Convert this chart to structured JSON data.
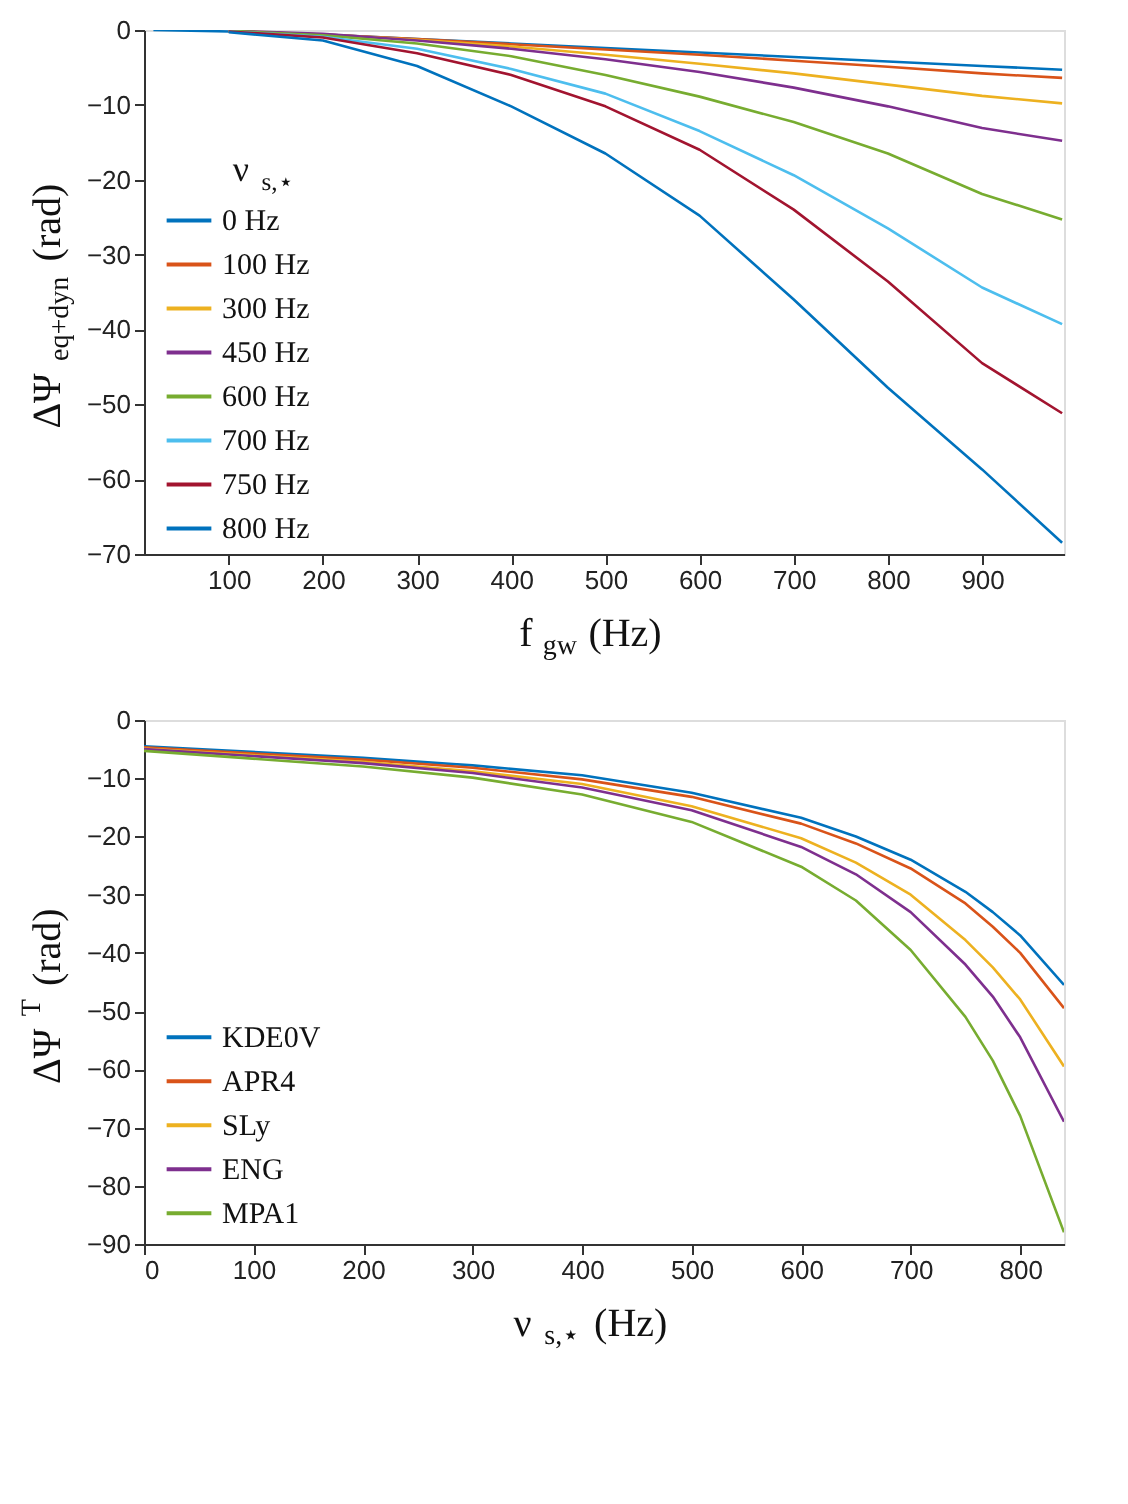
{
  "chart_data": [
    {
      "type": "line",
      "xlabel": "f$_{gw}$ (Hz)",
      "ylabel": "ΔΨ$_{eq+dyn}$ (rad)",
      "legend_title": "ν$_{s,⋆}$",
      "legend": "left",
      "grid": false,
      "line_style": "solid",
      "marker": "none",
      "x": [
        100,
        200,
        300,
        400,
        500,
        600,
        700,
        800,
        900,
        985
      ],
      "xlim": [
        10,
        987
      ],
      "xticks": [
        100,
        200,
        300,
        400,
        500,
        600,
        700,
        800,
        900
      ],
      "ylim": [
        -70,
        0
      ],
      "yticks": [
        -70,
        -60,
        -50,
        -40,
        -30,
        -20,
        -10,
        0
      ],
      "series": [
        {
          "name": "0 Hz",
          "color": "#0072bd",
          "x": [
            20,
            100,
            200,
            300,
            400,
            500,
            600,
            700,
            800,
            900,
            985
          ],
          "values": [
            0,
            -0.2,
            -0.6,
            -1.2,
            -1.8,
            -2.4,
            -3.0,
            -3.6,
            -4.2,
            -4.8,
            -5.3
          ]
        },
        {
          "name": "100 Hz",
          "color": "#d95319",
          "values": [
            -0.2,
            -0.6,
            -1.2,
            -1.9,
            -2.6,
            -3.3,
            -4.1,
            -4.9,
            -5.8,
            -6.4
          ]
        },
        {
          "name": "300 Hz",
          "color": "#edb120",
          "values": [
            -0.1,
            -0.6,
            -1.3,
            -2.2,
            -3.3,
            -4.5,
            -5.8,
            -7.3,
            -8.8,
            -9.8
          ]
        },
        {
          "name": "450 Hz",
          "color": "#7e2f8e",
          "values": [
            -0.1,
            -0.5,
            -1.4,
            -2.5,
            -3.9,
            -5.6,
            -7.7,
            -10.2,
            -13.1,
            -14.8
          ]
        },
        {
          "name": "600 Hz",
          "color": "#77ac30",
          "values": [
            -0.1,
            -0.7,
            -1.8,
            -3.5,
            -6.0,
            -8.9,
            -12.3,
            -16.5,
            -21.9,
            -25.3
          ]
        },
        {
          "name": "700 Hz",
          "color": "#4dbeee",
          "values": [
            -0.2,
            -0.9,
            -2.5,
            -5.2,
            -8.5,
            -13.5,
            -19.4,
            -26.5,
            -34.4,
            -39.3
          ]
        },
        {
          "name": "750 Hz",
          "color": "#a2142f",
          "values": [
            -0.2,
            -1.0,
            -3.1,
            -6.0,
            -10.2,
            -16.0,
            -24.0,
            -33.6,
            -44.5,
            -51.2
          ]
        },
        {
          "name": "800 Hz",
          "color": "#0072bd",
          "values": [
            -0.3,
            -1.4,
            -4.8,
            -10.2,
            -16.5,
            -24.8,
            -36.0,
            -47.8,
            -58.7,
            -68.5
          ]
        }
      ]
    },
    {
      "type": "line",
      "xlabel": "ν$_{s,⋆}$ (Hz)",
      "ylabel": "ΔΨ$^{T}$ (rad)",
      "legend": "bottom left",
      "grid": false,
      "line_style": "solid",
      "marker": "none",
      "x": [
        0,
        200,
        300,
        400,
        500,
        600,
        650,
        700,
        750,
        775,
        800,
        840
      ],
      "xlim": [
        0,
        840
      ],
      "xticks": [
        0,
        100,
        200,
        300,
        400,
        500,
        600,
        700,
        800
      ],
      "ylim": [
        -90,
        0
      ],
      "yticks": [
        -90,
        -80,
        -70,
        -60,
        -50,
        -40,
        -30,
        -20,
        -10,
        0
      ],
      "series": [
        {
          "name": "KDE0V",
          "color": "#0072bd",
          "values": [
            -4.5,
            -6.5,
            -7.8,
            -9.5,
            -12.5,
            -16.8,
            -20.0,
            -24.0,
            -29.5,
            -33.0,
            -37.0,
            -45.5
          ]
        },
        {
          "name": "APR4",
          "color": "#d95319",
          "values": [
            -4.7,
            -6.8,
            -8.2,
            -10.2,
            -13.2,
            -17.8,
            -21.2,
            -25.5,
            -31.5,
            -35.5,
            -40.0,
            -49.5
          ]
        },
        {
          "name": "SLy",
          "color": "#edb120",
          "values": [
            -4.9,
            -7.2,
            -8.8,
            -11.0,
            -14.8,
            -20.3,
            -24.5,
            -30.0,
            -37.8,
            -42.5,
            -48.0,
            -59.5
          ]
        },
        {
          "name": "ENG",
          "color": "#7e2f8e",
          "values": [
            -5.0,
            -7.4,
            -9.1,
            -11.6,
            -15.5,
            -21.8,
            -26.5,
            -33.0,
            -42.0,
            -47.5,
            -54.5,
            -69.0
          ]
        },
        {
          "name": "MPA1",
          "color": "#77ac30",
          "values": [
            -5.3,
            -8.0,
            -9.9,
            -12.8,
            -17.5,
            -25.2,
            -31.0,
            -39.5,
            -51.0,
            -58.5,
            -68.0,
            -88.0
          ]
        }
      ]
    }
  ]
}
